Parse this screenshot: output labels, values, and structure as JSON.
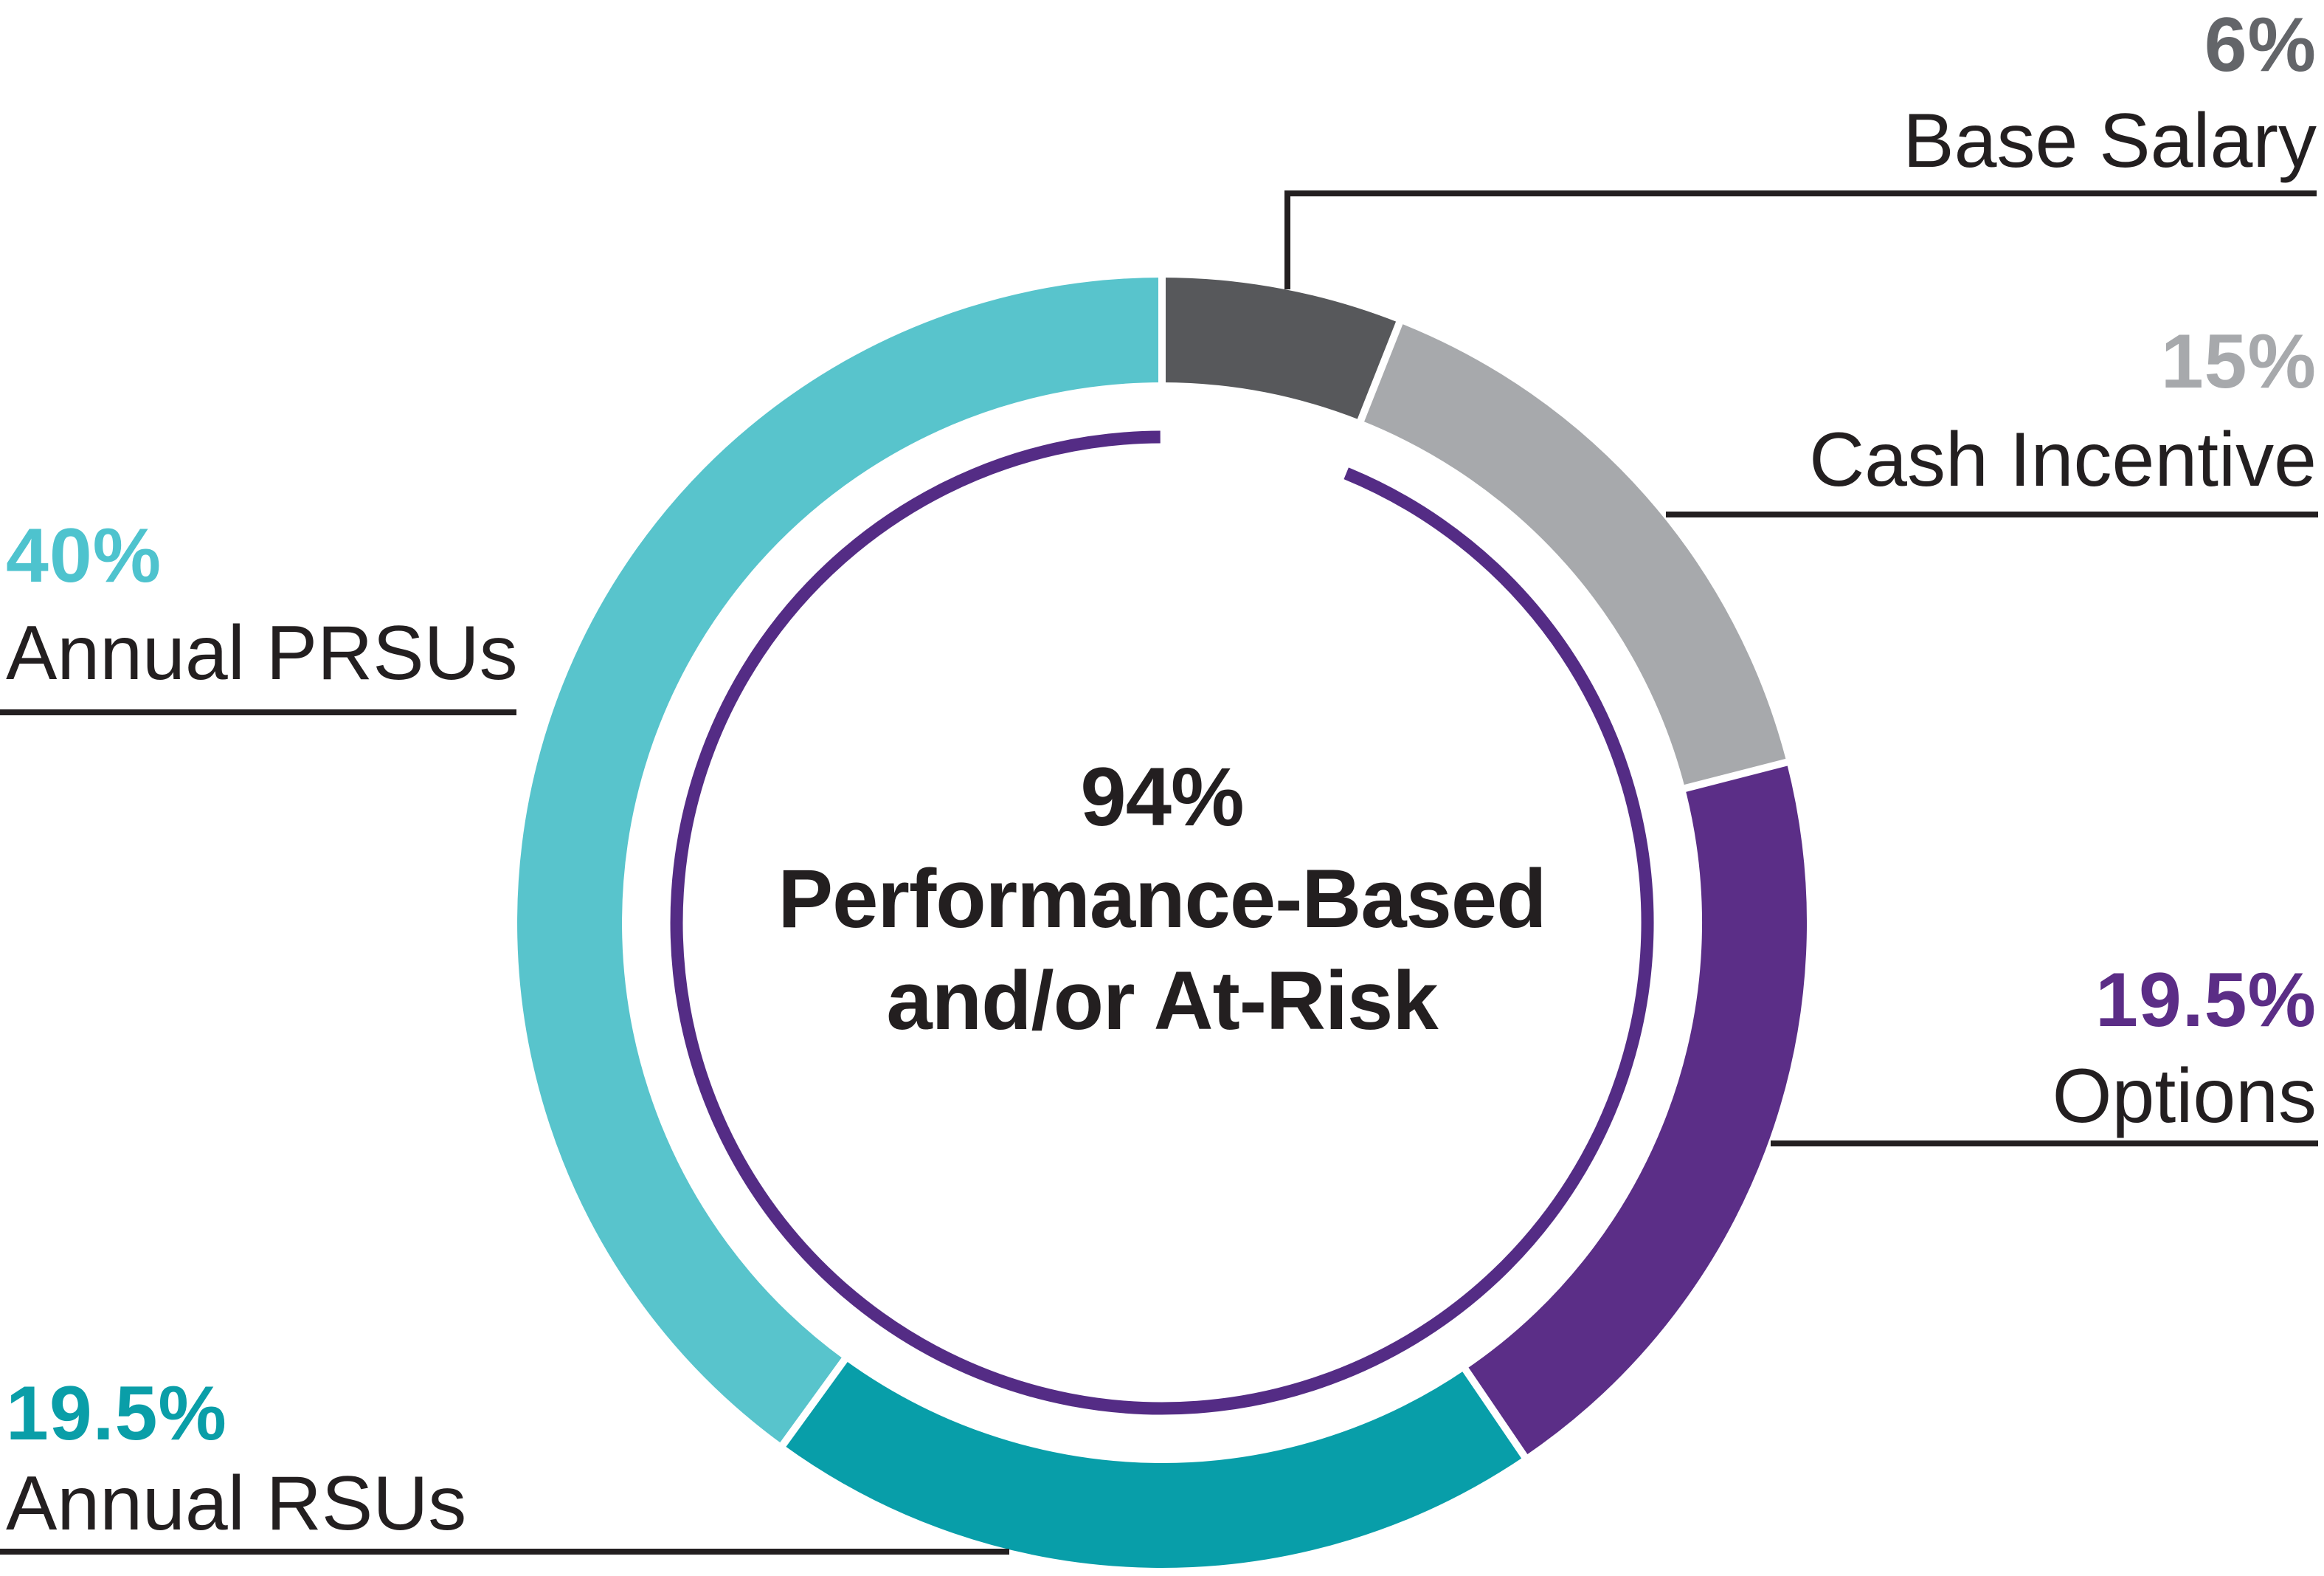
{
  "chart_data": {
    "type": "pie",
    "subtype": "donut-with-callouts",
    "background": "#FFFFFF",
    "text_color": "#231F20",
    "leader_line_color": "#231F20",
    "gap_color": "#FFFFFF",
    "center_label": [
      "94%",
      "Performance-Based",
      "and/or At-Risk"
    ],
    "inner_ring": {
      "value": 94,
      "value_text": "94%",
      "meaning": "Performance-Based and/or At-Risk",
      "color": "#542C85",
      "excludes_segment": "Base Salary"
    },
    "start_angle_deg": 0,
    "direction": "clockwise",
    "categories": [
      "Base Salary",
      "Cash Incentive",
      "Options",
      "Annual RSUs",
      "Annual PRSUs"
    ],
    "values": [
      6,
      15,
      19.5,
      19.5,
      40
    ],
    "segments": [
      {
        "label": "Base Salary",
        "value": 6,
        "value_text": "6%",
        "color": "#57585B",
        "value_label_color": "#636569",
        "callout_side": "top-right"
      },
      {
        "label": "Cash Incentive",
        "value": 15,
        "value_text": "15%",
        "color": "#A7A9AC",
        "value_label_color": "#A7A9AC",
        "callout_side": "right"
      },
      {
        "label": "Options",
        "value": 19.5,
        "value_text": "19.5%",
        "color": "#5B2E87",
        "value_label_color": "#5B2D86",
        "callout_side": "right"
      },
      {
        "label": "Annual RSUs",
        "value": 19.5,
        "value_text": "19.5%",
        "color": "#089EA9",
        "value_label_color": "#0A9EA8",
        "callout_side": "bottom-left"
      },
      {
        "label": "Annual PRSUs",
        "value": 40,
        "value_text": "40%",
        "color": "#58C4CC",
        "value_label_color": "#4EC3CE",
        "callout_side": "left"
      }
    ]
  }
}
